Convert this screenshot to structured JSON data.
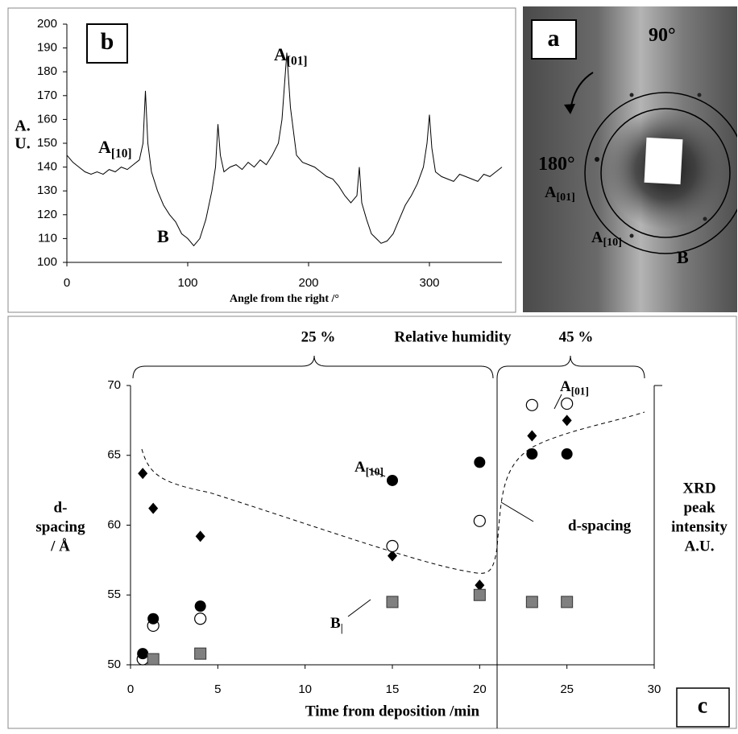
{
  "chart_data": [
    {
      "type": "line",
      "panel_label": "b",
      "xlabel": "Angle from the right /°",
      "ylabel_lines": [
        "A.",
        "U."
      ],
      "x": [
        0,
        5,
        10,
        15,
        20,
        25,
        30,
        35,
        40,
        45,
        50,
        55,
        60,
        63,
        65,
        67,
        70,
        75,
        80,
        85,
        90,
        95,
        100,
        105,
        110,
        115,
        120,
        123,
        125,
        127,
        130,
        135,
        140,
        145,
        150,
        155,
        160,
        165,
        170,
        175,
        178,
        182,
        185,
        190,
        195,
        200,
        205,
        210,
        215,
        220,
        225,
        230,
        235,
        240,
        242,
        244,
        248,
        252,
        256,
        260,
        265,
        270,
        275,
        280,
        285,
        290,
        295,
        298,
        300,
        302,
        305,
        310,
        315,
        320,
        325,
        330,
        335,
        340,
        345,
        350,
        355,
        360
      ],
      "series": [
        {
          "color": "#000000",
          "values": [
            145,
            142,
            140,
            138,
            137,
            138,
            137,
            139,
            138,
            140,
            139,
            141,
            143,
            150,
            172,
            150,
            138,
            130,
            124,
            120,
            117,
            112,
            110,
            107,
            110,
            118,
            130,
            140,
            158,
            145,
            138,
            140,
            141,
            139,
            142,
            140,
            143,
            141,
            145,
            150,
            160,
            188,
            165,
            145,
            142,
            141,
            140,
            138,
            136,
            135,
            132,
            128,
            125,
            128,
            140,
            125,
            118,
            112,
            110,
            108,
            109,
            112,
            118,
            124,
            128,
            133,
            140,
            150,
            162,
            148,
            138,
            136,
            135,
            134,
            137,
            136,
            135,
            134,
            137,
            136,
            138,
            140
          ]
        }
      ],
      "xlim": [
        0,
        360
      ],
      "xticks": [
        0,
        100,
        200,
        300
      ],
      "ylim": [
        100,
        200
      ],
      "yticks": [
        100,
        110,
        120,
        130,
        140,
        150,
        160,
        170,
        180,
        190,
        200
      ],
      "annotations": [
        {
          "label": "A",
          "subscript": "[10]"
        },
        {
          "label": "A",
          "subscript": "[01]"
        },
        {
          "label": "B"
        }
      ]
    },
    {
      "type": "scatter",
      "panel_label": "c",
      "xlabel": "Time from deposition /min",
      "ylabel_lines": [
        "d-",
        "spacing",
        "/ Å"
      ],
      "y2label_lines": [
        "XRD",
        "peak",
        "intensity",
        "A.U."
      ],
      "header": [
        "25 %",
        "Relative humidity",
        "45 %"
      ],
      "xlim": [
        0,
        30
      ],
      "xticks": [
        0,
        5,
        10,
        15,
        20,
        25,
        30
      ],
      "ylim": [
        50,
        70
      ],
      "yticks": [
        50,
        55,
        60,
        65,
        70
      ],
      "series": [
        {
          "name": "d-spacing",
          "marker": "diamond",
          "color": "#000000",
          "x": [
            0.7,
            1.3,
            4,
            15,
            20,
            23,
            25
          ],
          "values": [
            63.7,
            61.2,
            59.2,
            57.8,
            55.7,
            66.4,
            67.5
          ]
        },
        {
          "name": "A",
          "subscript": "[01]",
          "marker": "circle-open",
          "color": "#000000",
          "x": [
            0.7,
            1.3,
            4,
            15,
            20,
            23,
            25
          ],
          "values": [
            50.4,
            52.8,
            53.3,
            58.5,
            60.3,
            68.6,
            68.7
          ]
        },
        {
          "name": "A",
          "subscript": "[10]",
          "marker": "circle",
          "color": "#000000",
          "x": [
            0.7,
            1.3,
            4,
            15,
            20,
            23,
            25
          ],
          "values": [
            50.8,
            53.3,
            54.2,
            63.2,
            64.5,
            65.1,
            65.1
          ]
        },
        {
          "name": "B",
          "subscript": "|",
          "marker": "square",
          "color": "#808080",
          "x": [
            1.3,
            4,
            15,
            20,
            23,
            25
          ],
          "values": [
            50.4,
            50.8,
            54.5,
            55,
            54.5,
            54.5
          ]
        }
      ]
    }
  ],
  "panel_a": {
    "panel_label": "a",
    "labels": [
      {
        "label": "90°"
      },
      {
        "label": "180°"
      },
      {
        "label": "A",
        "subscript": "[01]"
      },
      {
        "label": "A",
        "subscript": "[10]"
      },
      {
        "label": "B"
      }
    ]
  }
}
